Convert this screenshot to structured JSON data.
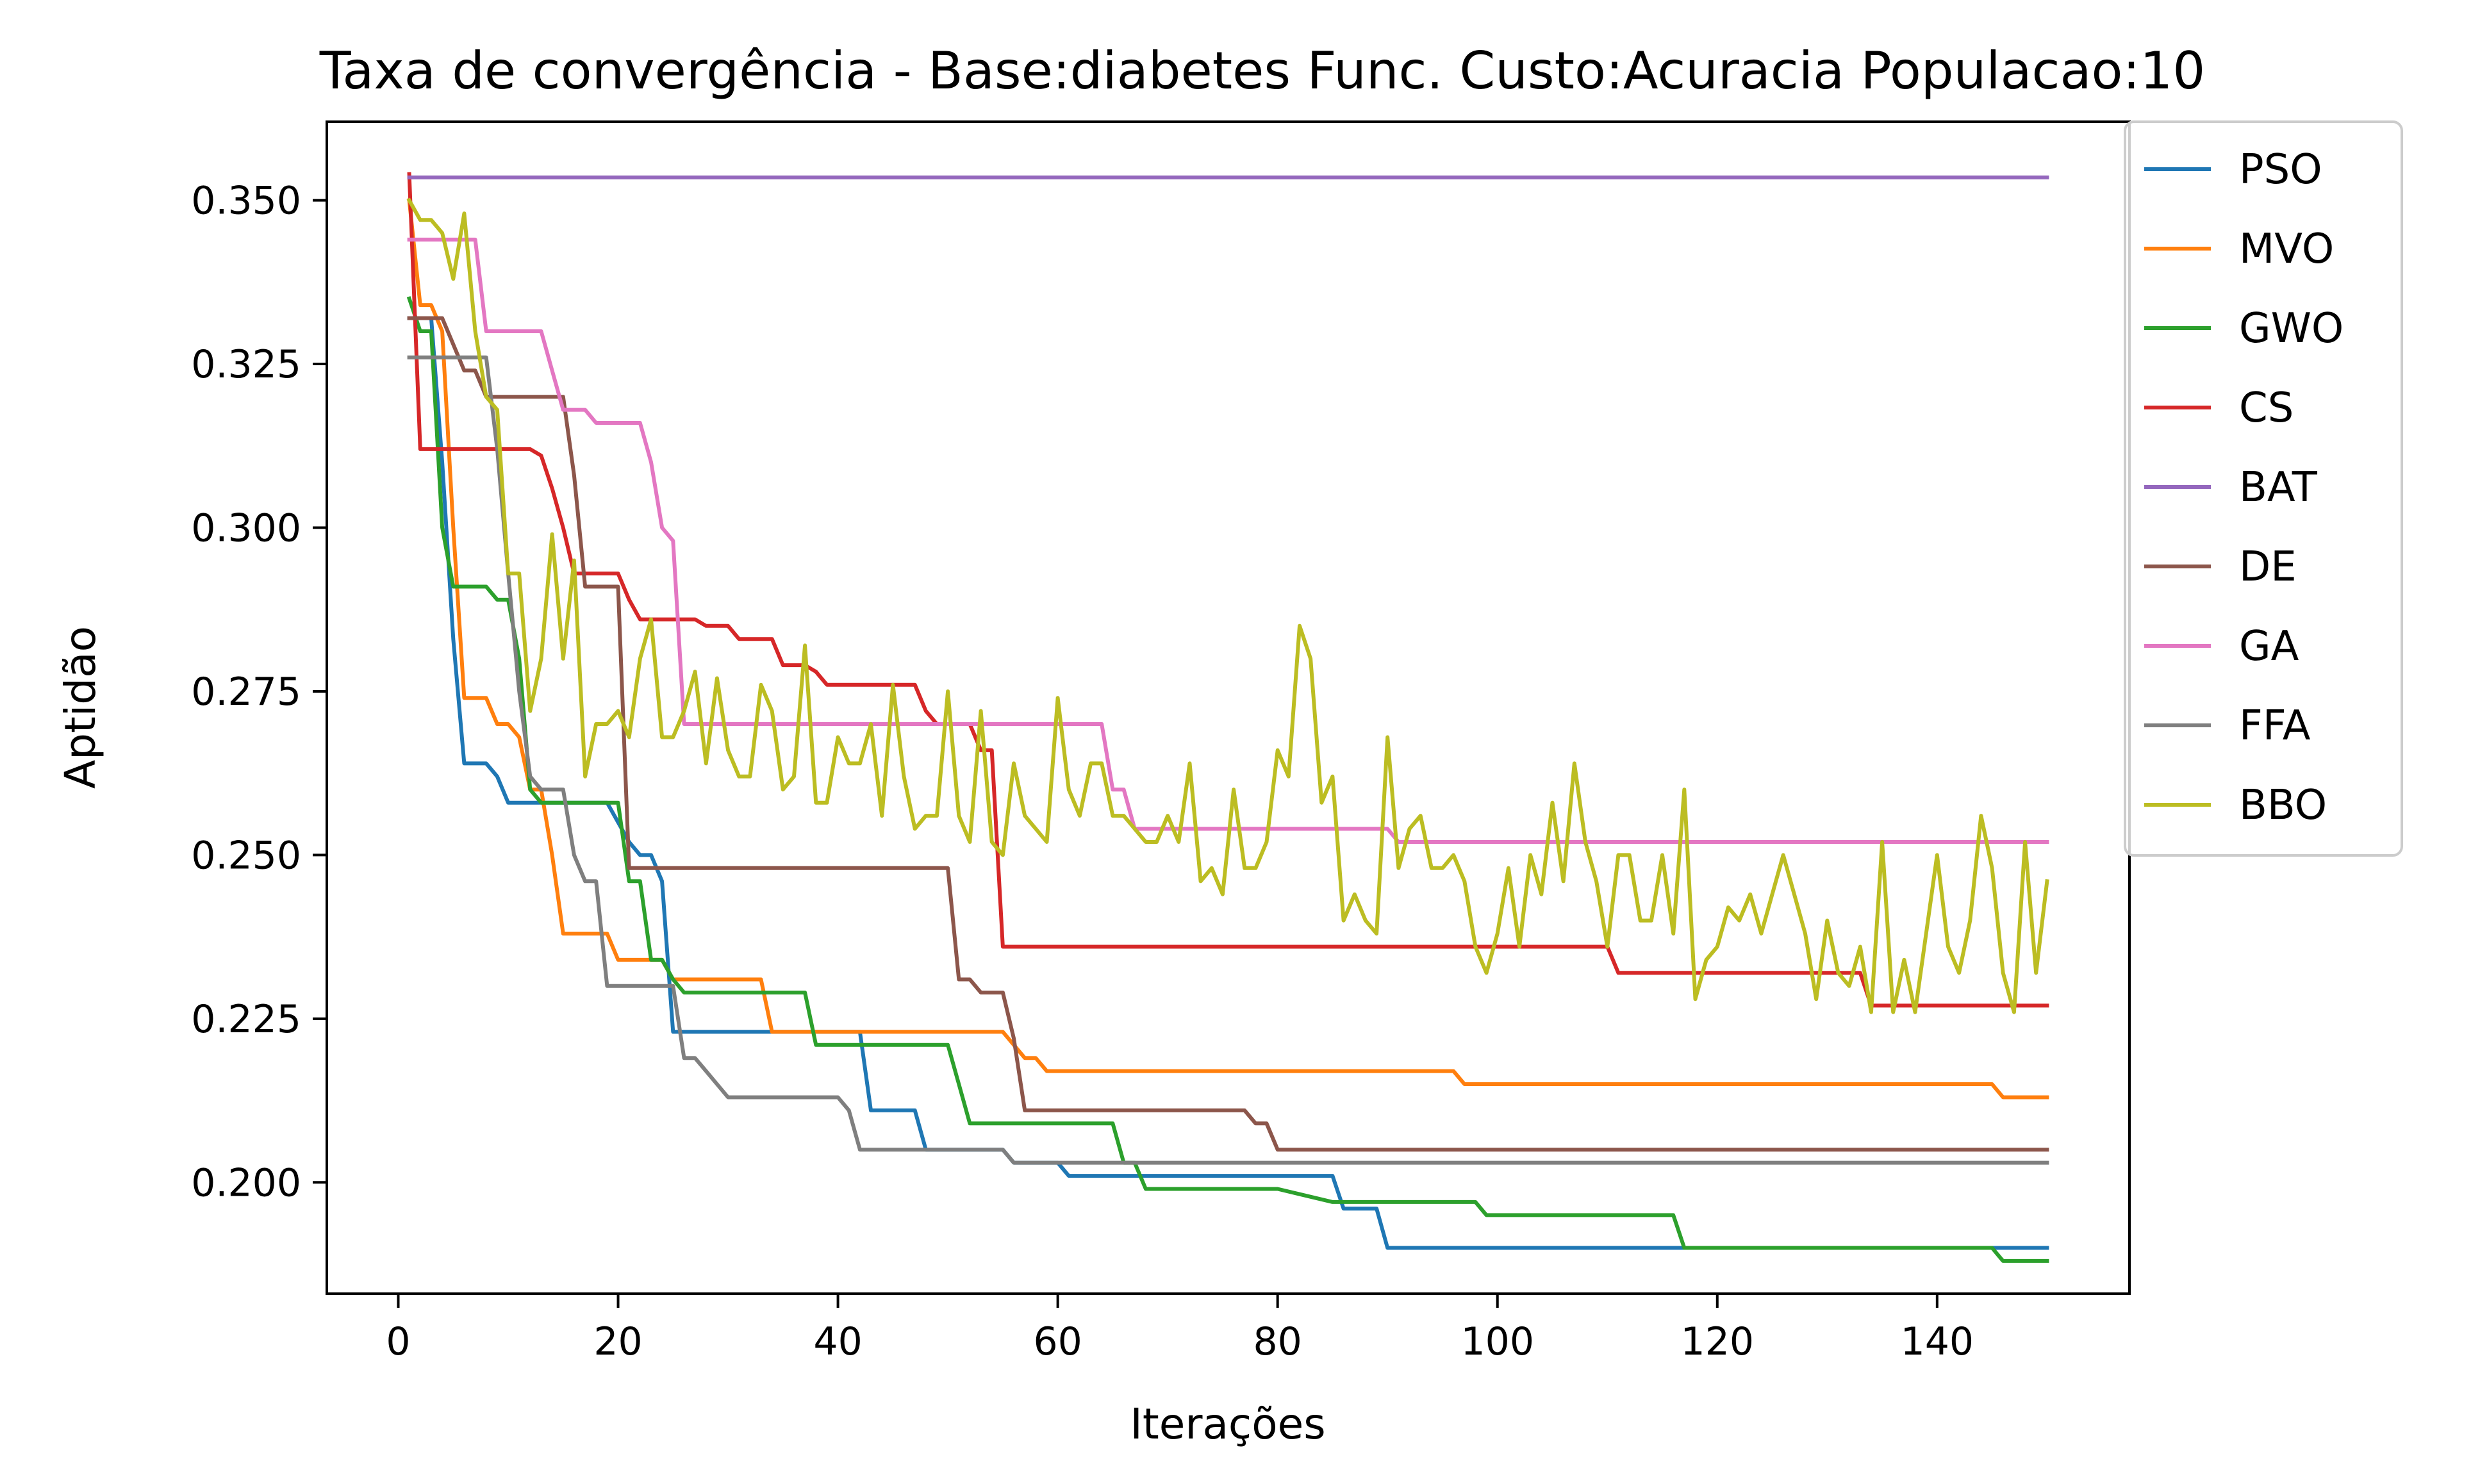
{
  "chart_data": {
    "type": "line",
    "title": "Taxa de convergência - Base:diabetes Func. Custo:Acuracia Populacao:10",
    "xlabel": "Iterações",
    "ylabel": "Aptidão",
    "xlim": [
      -6.5,
      157.5
    ],
    "ylim": [
      0.183,
      0.362
    ],
    "xticks": [
      0,
      20,
      40,
      60,
      80,
      100,
      120,
      140
    ],
    "xtick_labels": [
      "0",
      "20",
      "40",
      "60",
      "80",
      "100",
      "120",
      "140"
    ],
    "yticks": [
      0.2,
      0.225,
      0.25,
      0.275,
      0.3,
      0.325,
      0.35
    ],
    "ytick_labels": [
      "0.200",
      "0.225",
      "0.250",
      "0.275",
      "0.300",
      "0.325",
      "0.350"
    ],
    "grid": false,
    "legend_position": "outside-right-top",
    "series": [
      {
        "name": "PSO",
        "color": "#1f77b4",
        "x": [
          1,
          2,
          3,
          4,
          5,
          6,
          7,
          8,
          9,
          10,
          11,
          16,
          19,
          20,
          21,
          22,
          23,
          24,
          25,
          26,
          42,
          43,
          44,
          47,
          48,
          49,
          50,
          55,
          56,
          60,
          61,
          62,
          85,
          86,
          88,
          89,
          90,
          91,
          150
        ],
        "y": [
          0.332,
          0.332,
          0.332,
          0.31,
          0.283,
          0.264,
          0.264,
          0.264,
          0.262,
          0.258,
          0.258,
          0.258,
          0.258,
          0.255,
          0.252,
          0.25,
          0.25,
          0.246,
          0.223,
          0.223,
          0.223,
          0.211,
          0.211,
          0.211,
          0.205,
          0.205,
          0.205,
          0.205,
          0.203,
          0.203,
          0.201,
          0.201,
          0.201,
          0.196,
          0.196,
          0.196,
          0.19,
          0.19,
          0.19
        ]
      },
      {
        "name": "MVO",
        "color": "#ff7f0e",
        "x": [
          1,
          2,
          3,
          4,
          5,
          6,
          7,
          8,
          9,
          10,
          11,
          12,
          13,
          14,
          15,
          16,
          17,
          18,
          19,
          20,
          21,
          22,
          24,
          25,
          26,
          33,
          34,
          38,
          39,
          55,
          56,
          57,
          58,
          59,
          60,
          95,
          96,
          97,
          98,
          99,
          145,
          146,
          150
        ],
        "y": [
          0.35,
          0.334,
          0.334,
          0.33,
          0.3,
          0.274,
          0.274,
          0.274,
          0.27,
          0.27,
          0.268,
          0.26,
          0.26,
          0.25,
          0.238,
          0.238,
          0.238,
          0.238,
          0.238,
          0.234,
          0.234,
          0.234,
          0.234,
          0.231,
          0.231,
          0.231,
          0.223,
          0.223,
          0.223,
          0.223,
          0.221,
          0.219,
          0.219,
          0.217,
          0.217,
          0.217,
          0.217,
          0.215,
          0.215,
          0.215,
          0.215,
          0.213,
          0.213
        ]
      },
      {
        "name": "GWO",
        "color": "#2ca02c",
        "x": [
          1,
          2,
          3,
          4,
          5,
          6,
          7,
          8,
          9,
          10,
          11,
          12,
          13,
          14,
          15,
          16,
          17,
          18,
          19,
          20,
          21,
          22,
          23,
          24,
          25,
          26,
          36,
          37,
          38,
          50,
          51,
          52,
          64,
          65,
          66,
          67,
          68,
          78,
          79,
          80,
          85,
          86,
          96,
          97,
          98,
          99,
          115,
          116,
          117,
          145,
          146,
          150
        ],
        "y": [
          0.335,
          0.33,
          0.33,
          0.3,
          0.291,
          0.291,
          0.291,
          0.291,
          0.289,
          0.289,
          0.28,
          0.26,
          0.258,
          0.258,
          0.258,
          0.258,
          0.258,
          0.258,
          0.258,
          0.258,
          0.246,
          0.246,
          0.234,
          0.234,
          0.231,
          0.229,
          0.229,
          0.229,
          0.221,
          0.221,
          0.215,
          0.209,
          0.209,
          0.209,
          0.203,
          0.203,
          0.199,
          0.199,
          0.199,
          0.199,
          0.197,
          0.197,
          0.197,
          0.197,
          0.197,
          0.195,
          0.195,
          0.195,
          0.19,
          0.19,
          0.188,
          0.188
        ]
      },
      {
        "name": "CS",
        "color": "#d62728",
        "x": [
          1,
          2,
          3,
          4,
          5,
          6,
          7,
          8,
          9,
          10,
          11,
          12,
          13,
          14,
          15,
          16,
          17,
          18,
          19,
          20,
          21,
          22,
          23,
          24,
          25,
          26,
          27,
          28,
          29,
          30,
          31,
          32,
          33,
          34,
          35,
          36,
          37,
          38,
          39,
          40,
          41,
          42,
          43,
          44,
          45,
          46,
          47,
          48,
          49,
          50,
          51,
          52,
          53,
          54,
          55,
          56,
          57,
          58,
          59,
          60,
          110,
          111,
          112,
          113,
          133,
          134,
          135,
          136,
          150
        ],
        "y": [
          0.354,
          0.312,
          0.312,
          0.312,
          0.312,
          0.312,
          0.312,
          0.312,
          0.312,
          0.312,
          0.312,
          0.312,
          0.311,
          0.306,
          0.3,
          0.293,
          0.293,
          0.293,
          0.293,
          0.293,
          0.289,
          0.286,
          0.286,
          0.286,
          0.286,
          0.286,
          0.286,
          0.285,
          0.285,
          0.285,
          0.283,
          0.283,
          0.283,
          0.283,
          0.279,
          0.279,
          0.279,
          0.278,
          0.276,
          0.276,
          0.276,
          0.276,
          0.276,
          0.276,
          0.276,
          0.276,
          0.276,
          0.272,
          0.27,
          0.27,
          0.27,
          0.27,
          0.266,
          0.266,
          0.236,
          0.236,
          0.236,
          0.236,
          0.236,
          0.236,
          0.236,
          0.232,
          0.232,
          0.232,
          0.232,
          0.227,
          0.227,
          0.227,
          0.227
        ]
      },
      {
        "name": "BAT",
        "color": "#9467bd",
        "x": [
          1,
          150
        ],
        "y": [
          0.3535,
          0.3535
        ]
      },
      {
        "name": "DE",
        "color": "#8c564b",
        "x": [
          1,
          2,
          3,
          4,
          5,
          6,
          7,
          8,
          9,
          10,
          11,
          12,
          13,
          14,
          15,
          16,
          17,
          18,
          19,
          20,
          21,
          22,
          23,
          24,
          25,
          26,
          27,
          28,
          29,
          30,
          49,
          50,
          51,
          52,
          53,
          54,
          55,
          56,
          57,
          58,
          59,
          60,
          61,
          62,
          77,
          78,
          79,
          80,
          81,
          82,
          150
        ],
        "y": [
          0.332,
          0.332,
          0.332,
          0.332,
          0.328,
          0.324,
          0.324,
          0.32,
          0.32,
          0.32,
          0.32,
          0.32,
          0.32,
          0.32,
          0.32,
          0.308,
          0.291,
          0.291,
          0.291,
          0.291,
          0.248,
          0.248,
          0.248,
          0.248,
          0.248,
          0.248,
          0.248,
          0.248,
          0.248,
          0.248,
          0.248,
          0.248,
          0.231,
          0.231,
          0.229,
          0.229,
          0.229,
          0.222,
          0.211,
          0.211,
          0.211,
          0.211,
          0.211,
          0.211,
          0.211,
          0.209,
          0.209,
          0.205,
          0.205,
          0.205,
          0.205
        ]
      },
      {
        "name": "GA",
        "color": "#e377c2",
        "x": [
          1,
          7,
          8,
          13,
          14,
          15,
          16,
          17,
          18,
          19,
          22,
          23,
          24,
          25,
          26,
          27,
          28,
          64,
          65,
          66,
          67,
          68,
          90,
          91,
          150
        ],
        "y": [
          0.344,
          0.344,
          0.33,
          0.33,
          0.324,
          0.318,
          0.318,
          0.318,
          0.316,
          0.316,
          0.316,
          0.31,
          0.3,
          0.298,
          0.27,
          0.27,
          0.27,
          0.27,
          0.26,
          0.26,
          0.254,
          0.254,
          0.254,
          0.252,
          0.252
        ]
      },
      {
        "name": "FFA",
        "color": "#7f7f7f",
        "x": [
          1,
          2,
          3,
          4,
          5,
          6,
          7,
          8,
          9,
          10,
          11,
          12,
          13,
          14,
          15,
          16,
          17,
          18,
          19,
          20,
          21,
          22,
          23,
          24,
          25,
          26,
          27,
          28,
          29,
          30,
          31,
          32,
          33,
          34,
          35,
          36,
          37,
          38,
          39,
          40,
          41,
          42,
          43,
          54,
          55,
          56,
          57,
          58,
          150
        ],
        "y": [
          0.326,
          0.326,
          0.326,
          0.326,
          0.326,
          0.326,
          0.326,
          0.326,
          0.312,
          0.293,
          0.275,
          0.262,
          0.26,
          0.26,
          0.26,
          0.25,
          0.246,
          0.246,
          0.23,
          0.23,
          0.23,
          0.23,
          0.23,
          0.23,
          0.23,
          0.219,
          0.219,
          0.217,
          0.215,
          0.213,
          0.213,
          0.213,
          0.213,
          0.213,
          0.213,
          0.213,
          0.213,
          0.213,
          0.213,
          0.213,
          0.211,
          0.205,
          0.205,
          0.205,
          0.205,
          0.203,
          0.203,
          0.203,
          0.203
        ]
      },
      {
        "name": "BBO",
        "color": "#bcbd22",
        "x": [
          1,
          2,
          3,
          4,
          5,
          6,
          7,
          8,
          9,
          10,
          11,
          12,
          13,
          14,
          15,
          16,
          17,
          18,
          19,
          20,
          21,
          22,
          23,
          24,
          25,
          26,
          27,
          28,
          29,
          30,
          31,
          32,
          33,
          34,
          35,
          36,
          37,
          38,
          39,
          40,
          41,
          42,
          43,
          44,
          45,
          46,
          47,
          48,
          49,
          50,
          51,
          52,
          53,
          54,
          55,
          56,
          57,
          58,
          59,
          60,
          61,
          62,
          63,
          64,
          65,
          66,
          67,
          68,
          69,
          70,
          71,
          72,
          73,
          74,
          75,
          76,
          77,
          78,
          79,
          80,
          81,
          82,
          83,
          84,
          85,
          86,
          87,
          88,
          89,
          90,
          91,
          92,
          93,
          94,
          95,
          96,
          97,
          98,
          99,
          100,
          101,
          102,
          103,
          104,
          105,
          106,
          107,
          108,
          109,
          110,
          111,
          112,
          113,
          114,
          115,
          116,
          117,
          118,
          119,
          120,
          121,
          122,
          123,
          124,
          125,
          126,
          127,
          128,
          129,
          130,
          131,
          132,
          133,
          134,
          135,
          136,
          137,
          138,
          139,
          140,
          141,
          142,
          143,
          144,
          145,
          146,
          147,
          148,
          149,
          150
        ],
        "y": [
          0.35,
          0.347,
          0.347,
          0.345,
          0.338,
          0.348,
          0.33,
          0.32,
          0.318,
          0.293,
          0.293,
          0.272,
          0.28,
          0.299,
          0.28,
          0.295,
          0.262,
          0.27,
          0.27,
          0.272,
          0.268,
          0.28,
          0.286,
          0.268,
          0.268,
          0.272,
          0.278,
          0.264,
          0.277,
          0.266,
          0.262,
          0.262,
          0.276,
          0.272,
          0.26,
          0.262,
          0.282,
          0.258,
          0.258,
          0.268,
          0.264,
          0.264,
          0.27,
          0.256,
          0.276,
          0.262,
          0.254,
          0.256,
          0.256,
          0.275,
          0.256,
          0.252,
          0.272,
          0.252,
          0.25,
          0.264,
          0.256,
          0.254,
          0.252,
          0.274,
          0.26,
          0.256,
          0.264,
          0.264,
          0.256,
          0.256,
          0.254,
          0.252,
          0.252,
          0.256,
          0.252,
          0.264,
          0.246,
          0.248,
          0.244,
          0.26,
          0.248,
          0.248,
          0.252,
          0.266,
          0.262,
          0.285,
          0.28,
          0.258,
          0.262,
          0.24,
          0.244,
          0.24,
          0.238,
          0.268,
          0.248,
          0.254,
          0.256,
          0.248,
          0.248,
          0.25,
          0.246,
          0.236,
          0.232,
          0.238,
          0.248,
          0.236,
          0.25,
          0.244,
          0.258,
          0.246,
          0.264,
          0.252,
          0.246,
          0.236,
          0.25,
          0.25,
          0.24,
          0.24,
          0.25,
          0.238,
          0.26,
          0.228,
          0.234,
          0.236,
          0.242,
          0.24,
          0.244,
          0.238,
          0.244,
          0.25,
          0.244,
          0.238,
          0.228,
          0.24,
          0.232,
          0.23,
          0.236,
          0.226,
          0.252,
          0.226,
          0.234,
          0.226,
          0.238,
          0.25,
          0.236,
          0.232,
          0.24,
          0.256,
          0.248,
          0.232,
          0.226,
          0.252,
          0.232,
          0.246
        ]
      }
    ]
  }
}
